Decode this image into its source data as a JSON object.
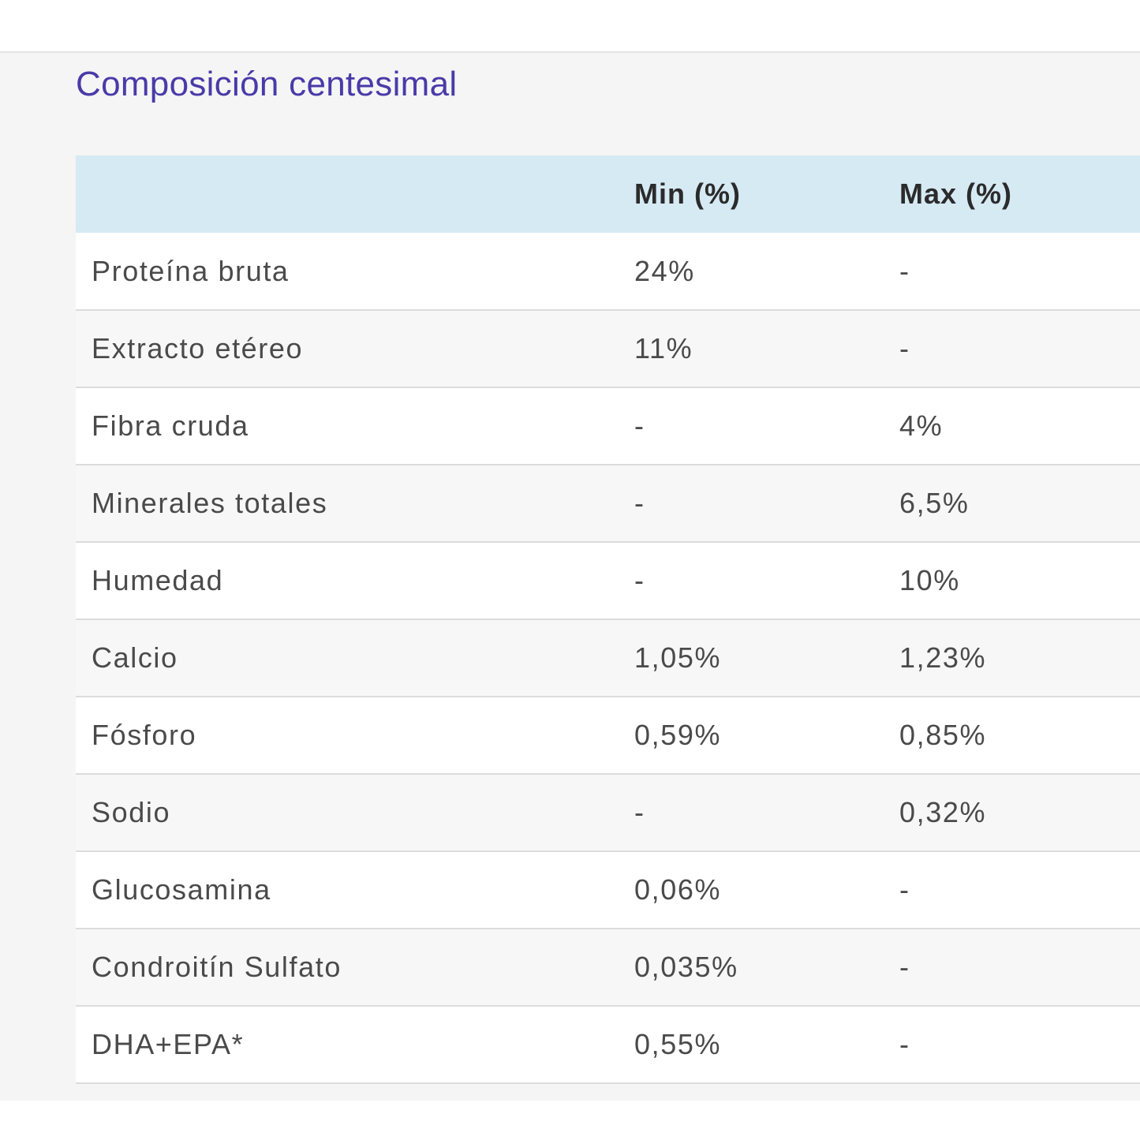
{
  "section": {
    "title": "Composición centesimal"
  },
  "table": {
    "headers": [
      "",
      "Min (%)",
      "Max (%)"
    ],
    "rows": [
      {
        "name": "Proteína bruta",
        "min": "24%",
        "max": "-"
      },
      {
        "name": "Extracto etéreo",
        "min": "11%",
        "max": "-"
      },
      {
        "name": "Fibra cruda",
        "min": "-",
        "max": "4%"
      },
      {
        "name": "Minerales totales",
        "min": "-",
        "max": "6,5%"
      },
      {
        "name": "Humedad",
        "min": "-",
        "max": "10%"
      },
      {
        "name": "Calcio",
        "min": "1,05%",
        "max": "1,23%"
      },
      {
        "name": "Fósforo",
        "min": "0,59%",
        "max": "0,85%"
      },
      {
        "name": "Sodio",
        "min": "-",
        "max": "0,32%"
      },
      {
        "name": "Glucosamina",
        "min": "0,06%",
        "max": "-"
      },
      {
        "name": "Condroitín Sulfato",
        "min": "0,035%",
        "max": "-"
      },
      {
        "name": "DHA+EPA*",
        "min": "0,55%",
        "max": "-"
      }
    ]
  },
  "colors": {
    "title": "#4a3aa8",
    "header_background": "#d6eaf4",
    "section_background": "#f5f5f5"
  }
}
